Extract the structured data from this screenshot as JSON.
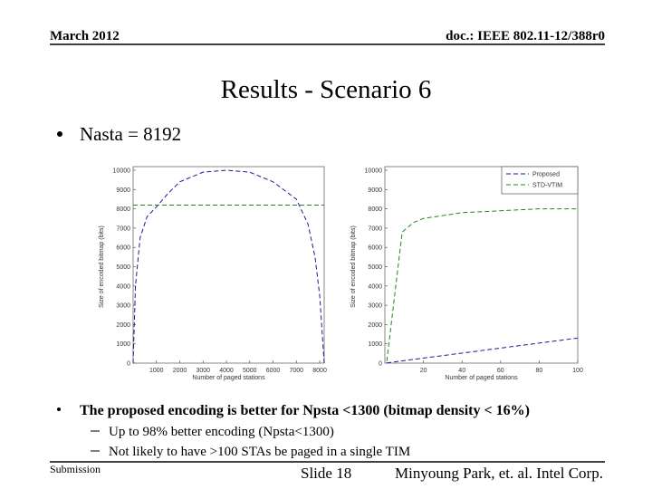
{
  "header": {
    "date": "March 2012",
    "doc": "doc.: IEEE 802.11-12/388r0"
  },
  "title": "Results - Scenario 6",
  "bullet": "Nasta = 8192",
  "chart_data": [
    {
      "type": "line",
      "xlabel": "Number of paged stations",
      "ylabel": "Size of encoded bitmap (bits)",
      "x": [
        0,
        100,
        300,
        600,
        1000,
        1500,
        2000,
        3000,
        4000,
        5000,
        6000,
        7000,
        7500,
        7800,
        8000,
        8192
      ],
      "series": [
        {
          "color": "#1a1a9c",
          "values": [
            0,
            4000,
            6500,
            7600,
            8100,
            8800,
            9400,
            9900,
            10000,
            9900,
            9400,
            8500,
            7200,
            5500,
            3500,
            0
          ]
        },
        {
          "color": "#1a8a1a",
          "values": [
            8192,
            8192,
            8192,
            8192,
            8192,
            8192,
            8192,
            8192,
            8192,
            8192,
            8192,
            8192,
            8192,
            8192,
            8192,
            8192
          ]
        }
      ],
      "xlim": [
        0,
        8192
      ],
      "xticks": [
        1000,
        2000,
        3000,
        4000,
        5000,
        6000,
        7000,
        8000
      ],
      "ylim": [
        0,
        10000
      ],
      "yticks": [
        0,
        1000,
        2000,
        3000,
        4000,
        5000,
        6000,
        7000,
        8000,
        9000,
        10000
      ]
    },
    {
      "type": "line",
      "xlabel": "Number of paged stations",
      "ylabel": "Size of encoded bitmap (bits)",
      "x": [
        1,
        9,
        15,
        20,
        40,
        60,
        80,
        100
      ],
      "series": [
        {
          "name": "Proposed",
          "color": "#1a1a9c",
          "values": [
            13,
            117,
            195,
            260,
            520,
            780,
            1040,
            1300
          ]
        },
        {
          "name": "STD-VTIM",
          "color": "#1a8a1a",
          "values": [
            100,
            6800,
            7300,
            7500,
            7800,
            7900,
            8000,
            8000
          ]
        }
      ],
      "xlim": [
        0,
        100
      ],
      "xticks": [
        20,
        40,
        60,
        80,
        100
      ],
      "ylim": [
        0,
        10000
      ],
      "yticks": [
        0,
        1000,
        2000,
        3000,
        4000,
        5000,
        6000,
        7000,
        8000,
        9000,
        10000
      ],
      "legend": "upper right"
    }
  ],
  "conclusion": {
    "text": "The proposed encoding is better for Npsta <1300 (bitmap density < 16%)",
    "subs": [
      "Up to 98% better encoding (Npsta<1300)",
      "Not likely to have >100 STAs be paged in a single TIM"
    ]
  },
  "footer": {
    "left": "Submission",
    "center": "Slide 18",
    "right": "Minyoung Park, et. al. Intel Corp."
  }
}
